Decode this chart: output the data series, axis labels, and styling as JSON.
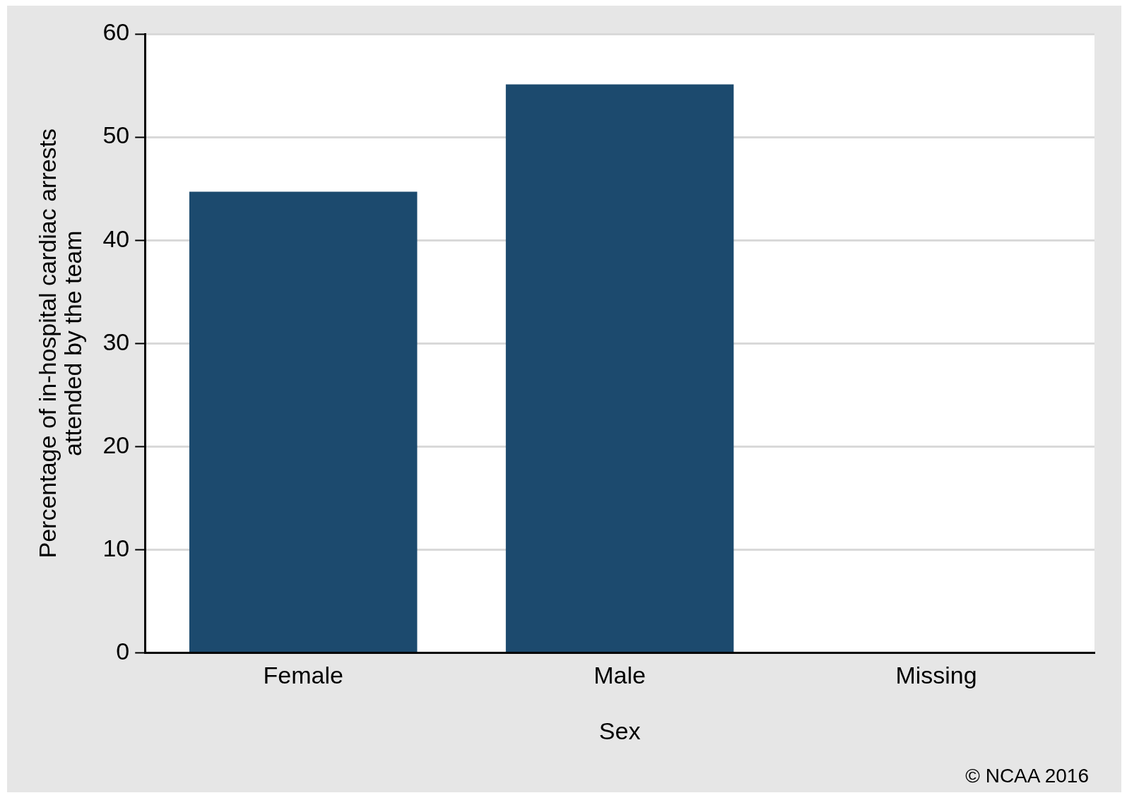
{
  "chart_data": {
    "type": "bar",
    "categories": [
      "Female",
      "Male",
      "Missing"
    ],
    "values": [
      44.7,
      55.1,
      0
    ],
    "color": "#1c4a6e",
    "xlabel": "Sex",
    "ylabel": "Percentage of in-hospital cardiac arrests\nattended by the team",
    "ylim": [
      0,
      60
    ],
    "yticks": [
      0,
      10,
      20,
      30,
      40,
      50,
      60
    ],
    "grid": "y",
    "legend": false,
    "annotations": [
      "© NCAA 2016"
    ]
  }
}
